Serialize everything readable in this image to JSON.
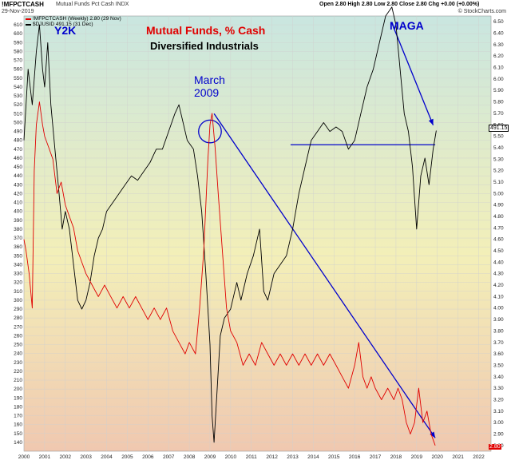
{
  "header": {
    "symbol": "!MFPCTCASH",
    "subtitle": "Mutual Funds Pct Cash INDX",
    "date": "29-Nov-2019",
    "ohlc": "Open 2.80  High 2.80  Low 2.80  Close 2.80  Chg +0.00 (+0.00%)",
    "brand": "© StockCharts.com"
  },
  "legend": {
    "line1": "!MFPCTCASH (Weekly) 2.80 (29 Nov)",
    "line2": "$DJUSID 491.15 (31 Dec)"
  },
  "annotations": {
    "title1": "Mutual Funds, % Cash",
    "title2": "Diversified Industrials",
    "y2k": "Y2K",
    "march": "March",
    "year2009": "2009",
    "maga": "MAGA"
  },
  "price_tag": "491.15",
  "cash_tag": "2.80",
  "colors": {
    "cash_line": "#e00000",
    "index_line": "#000000",
    "annotation_blue": "#0000cc",
    "title_red": "#e00000",
    "bg_top": "#c9e6e0",
    "bg_mid": "#f3efb8",
    "bg_bottom": "#f0c8b0"
  },
  "chart_data": {
    "type": "line",
    "x_ticks": [
      "2000",
      "2001",
      "2002",
      "2003",
      "2004",
      "2005",
      "2006",
      "2007",
      "2008",
      "2009",
      "2010",
      "2011",
      "2012",
      "2013",
      "2014",
      "2015",
      "2016",
      "2017",
      "2018",
      "2019",
      "2020",
      "2021",
      "2022"
    ],
    "left_axis": {
      "label": "$DJUSID",
      "ylim": [
        130,
        620
      ],
      "ticks": [
        140,
        150,
        160,
        170,
        180,
        190,
        200,
        210,
        220,
        230,
        240,
        250,
        260,
        270,
        280,
        290,
        300,
        310,
        320,
        330,
        340,
        350,
        360,
        370,
        380,
        390,
        400,
        410,
        420,
        430,
        440,
        450,
        460,
        470,
        480,
        490,
        500,
        510,
        520,
        530,
        540,
        550,
        560,
        570,
        580,
        590,
        600,
        610
      ]
    },
    "right_axis": {
      "label": "!MFPCTCASH",
      "ylim": [
        2.75,
        6.55
      ],
      "ticks": [
        "2.80",
        "2.90",
        "3.00",
        "3.10",
        "3.20",
        "3.30",
        "3.40",
        "3.50",
        "3.60",
        "3.70",
        "3.80",
        "3.90",
        "4.00",
        "4.10",
        "4.20",
        "4.30",
        "4.40",
        "4.50",
        "4.60",
        "4.70",
        "4.80",
        "4.90",
        "5.00",
        "5.10",
        "5.20",
        "5.30",
        "5.40",
        "5.50",
        "5.60",
        "5.70",
        "5.80",
        "5.90",
        "6.00",
        "6.10",
        "6.20",
        "6.30",
        "6.40",
        "6.50"
      ]
    },
    "series": [
      {
        "name": "$DJUSID",
        "axis": "left",
        "points": [
          [
            2000.0,
            480
          ],
          [
            2000.2,
            560
          ],
          [
            2000.4,
            520
          ],
          [
            2000.6,
            580
          ],
          [
            2000.75,
            610
          ],
          [
            2000.9,
            560
          ],
          [
            2001.0,
            540
          ],
          [
            2001.15,
            590
          ],
          [
            2001.3,
            520
          ],
          [
            2001.5,
            470
          ],
          [
            2001.7,
            420
          ],
          [
            2001.85,
            380
          ],
          [
            2002.0,
            400
          ],
          [
            2002.2,
            380
          ],
          [
            2002.4,
            340
          ],
          [
            2002.6,
            300
          ],
          [
            2002.8,
            290
          ],
          [
            2003.0,
            300
          ],
          [
            2003.2,
            320
          ],
          [
            2003.4,
            350
          ],
          [
            2003.6,
            370
          ],
          [
            2003.8,
            380
          ],
          [
            2004.0,
            400
          ],
          [
            2004.3,
            410
          ],
          [
            2004.6,
            420
          ],
          [
            2004.9,
            430
          ],
          [
            2005.2,
            440
          ],
          [
            2005.5,
            435
          ],
          [
            2005.8,
            445
          ],
          [
            2006.1,
            455
          ],
          [
            2006.4,
            470
          ],
          [
            2006.7,
            470
          ],
          [
            2007.0,
            490
          ],
          [
            2007.3,
            510
          ],
          [
            2007.5,
            520
          ],
          [
            2007.7,
            500
          ],
          [
            2007.9,
            480
          ],
          [
            2008.2,
            470
          ],
          [
            2008.4,
            440
          ],
          [
            2008.6,
            400
          ],
          [
            2008.8,
            330
          ],
          [
            2009.0,
            250
          ],
          [
            2009.1,
            170
          ],
          [
            2009.2,
            140
          ],
          [
            2009.35,
            200
          ],
          [
            2009.5,
            260
          ],
          [
            2009.7,
            280
          ],
          [
            2010.0,
            290
          ],
          [
            2010.3,
            320
          ],
          [
            2010.5,
            300
          ],
          [
            2010.8,
            330
          ],
          [
            2011.1,
            350
          ],
          [
            2011.4,
            380
          ],
          [
            2011.6,
            310
          ],
          [
            2011.8,
            300
          ],
          [
            2012.1,
            330
          ],
          [
            2012.4,
            340
          ],
          [
            2012.7,
            350
          ],
          [
            2013.0,
            380
          ],
          [
            2013.3,
            420
          ],
          [
            2013.6,
            450
          ],
          [
            2013.9,
            480
          ],
          [
            2014.2,
            490
          ],
          [
            2014.5,
            500
          ],
          [
            2014.8,
            490
          ],
          [
            2015.1,
            495
          ],
          [
            2015.4,
            490
          ],
          [
            2015.7,
            470
          ],
          [
            2016.0,
            480
          ],
          [
            2016.3,
            510
          ],
          [
            2016.6,
            540
          ],
          [
            2016.9,
            560
          ],
          [
            2017.2,
            590
          ],
          [
            2017.5,
            620
          ],
          [
            2017.8,
            630
          ],
          [
            2018.0,
            610
          ],
          [
            2018.2,
            560
          ],
          [
            2018.4,
            510
          ],
          [
            2018.6,
            490
          ],
          [
            2018.8,
            450
          ],
          [
            2019.0,
            380
          ],
          [
            2019.2,
            440
          ],
          [
            2019.4,
            460
          ],
          [
            2019.6,
            430
          ],
          [
            2019.8,
            470
          ],
          [
            2019.95,
            491
          ]
        ]
      },
      {
        "name": "!MFPCTCASH",
        "axis": "right",
        "points": [
          [
            2000.0,
            4.6
          ],
          [
            2000.1,
            4.5
          ],
          [
            2000.25,
            4.3
          ],
          [
            2000.4,
            4.0
          ],
          [
            2000.5,
            5.2
          ],
          [
            2000.6,
            5.6
          ],
          [
            2000.75,
            5.8
          ],
          [
            2000.9,
            5.6
          ],
          [
            2001.0,
            5.5
          ],
          [
            2001.2,
            5.4
          ],
          [
            2001.4,
            5.3
          ],
          [
            2001.6,
            5.0
          ],
          [
            2001.8,
            5.1
          ],
          [
            2002.0,
            4.9
          ],
          [
            2002.2,
            4.8
          ],
          [
            2002.4,
            4.7
          ],
          [
            2002.6,
            4.5
          ],
          [
            2002.8,
            4.4
          ],
          [
            2003.0,
            4.3
          ],
          [
            2003.3,
            4.2
          ],
          [
            2003.6,
            4.1
          ],
          [
            2003.9,
            4.2
          ],
          [
            2004.2,
            4.1
          ],
          [
            2004.5,
            4.0
          ],
          [
            2004.8,
            4.1
          ],
          [
            2005.1,
            4.0
          ],
          [
            2005.4,
            4.1
          ],
          [
            2005.7,
            4.0
          ],
          [
            2006.0,
            3.9
          ],
          [
            2006.3,
            4.0
          ],
          [
            2006.6,
            3.9
          ],
          [
            2006.9,
            4.0
          ],
          [
            2007.2,
            3.8
          ],
          [
            2007.5,
            3.7
          ],
          [
            2007.8,
            3.6
          ],
          [
            2008.0,
            3.7
          ],
          [
            2008.3,
            3.6
          ],
          [
            2008.5,
            4.0
          ],
          [
            2008.7,
            4.5
          ],
          [
            2008.9,
            5.3
          ],
          [
            2009.0,
            5.6
          ],
          [
            2009.1,
            5.7
          ],
          [
            2009.25,
            5.4
          ],
          [
            2009.4,
            5.0
          ],
          [
            2009.6,
            4.5
          ],
          [
            2009.8,
            4.0
          ],
          [
            2010.0,
            3.8
          ],
          [
            2010.3,
            3.7
          ],
          [
            2010.6,
            3.5
          ],
          [
            2010.9,
            3.6
          ],
          [
            2011.2,
            3.5
          ],
          [
            2011.5,
            3.7
          ],
          [
            2011.8,
            3.6
          ],
          [
            2012.1,
            3.5
          ],
          [
            2012.4,
            3.6
          ],
          [
            2012.7,
            3.5
          ],
          [
            2013.0,
            3.6
          ],
          [
            2013.3,
            3.5
          ],
          [
            2013.6,
            3.6
          ],
          [
            2013.9,
            3.5
          ],
          [
            2014.2,
            3.6
          ],
          [
            2014.5,
            3.5
          ],
          [
            2014.8,
            3.6
          ],
          [
            2015.1,
            3.5
          ],
          [
            2015.4,
            3.4
          ],
          [
            2015.7,
            3.3
          ],
          [
            2016.0,
            3.5
          ],
          [
            2016.2,
            3.7
          ],
          [
            2016.4,
            3.4
          ],
          [
            2016.6,
            3.3
          ],
          [
            2016.8,
            3.4
          ],
          [
            2017.0,
            3.3
          ],
          [
            2017.3,
            3.2
          ],
          [
            2017.6,
            3.3
          ],
          [
            2017.9,
            3.2
          ],
          [
            2018.1,
            3.3
          ],
          [
            2018.3,
            3.2
          ],
          [
            2018.5,
            3.0
          ],
          [
            2018.7,
            2.9
          ],
          [
            2018.9,
            3.0
          ],
          [
            2019.1,
            3.3
          ],
          [
            2019.3,
            3.0
          ],
          [
            2019.5,
            3.1
          ],
          [
            2019.7,
            2.9
          ],
          [
            2019.9,
            2.8
          ]
        ]
      }
    ],
    "reference_lines": [
      {
        "kind": "horizontal",
        "axis": "left",
        "y": 475,
        "x_from": 2012.9,
        "x_to": 2019.9
      },
      {
        "kind": "trend",
        "axis": "left",
        "from": [
          2009.2,
          510
        ],
        "to": [
          2019.9,
          145
        ]
      },
      {
        "kind": "trend",
        "axis": "left",
        "from": [
          2017.8,
          612
        ],
        "to": [
          2019.8,
          497
        ]
      }
    ],
    "circle": {
      "axis": "left",
      "center": [
        2009.0,
        490
      ],
      "radius_years": 0.55
    }
  }
}
